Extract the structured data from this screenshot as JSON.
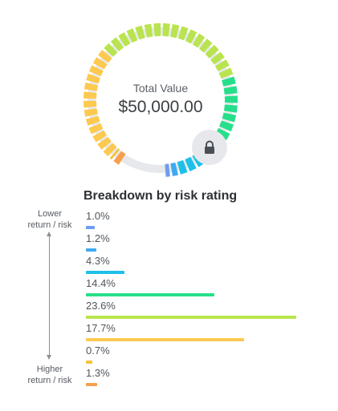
{
  "portfolio": {
    "total_label": "Total Value",
    "total_value": "$50,000.00"
  },
  "breakdown": {
    "title": "Breakdown by risk rating",
    "axis_top": [
      "Lower",
      "return / risk"
    ],
    "axis_bottom": [
      "Higher",
      "return / risk"
    ],
    "rows": [
      {
        "pct_label": "1.0%",
        "value": 1.0,
        "color": "#6f9cf2"
      },
      {
        "pct_label": "1.2%",
        "value": 1.2,
        "color": "#3eaaf0"
      },
      {
        "pct_label": "4.3%",
        "value": 4.3,
        "color": "#1ec0e8"
      },
      {
        "pct_label": "14.4%",
        "value": 14.4,
        "color": "#27df8a"
      },
      {
        "pct_label": "23.6%",
        "value": 23.6,
        "color": "#b9e44f"
      },
      {
        "pct_label": "17.7%",
        "value": 17.7,
        "color": "#fdc94f"
      },
      {
        "pct_label": "0.7%",
        "value": 0.7,
        "color": "#f5c436"
      },
      {
        "pct_label": "1.3%",
        "value": 1.3,
        "color": "#f6a04e"
      }
    ]
  },
  "donut": {
    "track_color": "#e6e8eb",
    "segments": [
      {
        "color": "#6f9cf2",
        "value": 1.0
      },
      {
        "color": "#3eaaf0",
        "value": 1.2
      },
      {
        "color": "#1ec0e8",
        "value": 4.3
      },
      {
        "color": "#27df8a",
        "value": 14.4
      },
      {
        "color": "#b9e44f",
        "value": 23.6
      },
      {
        "color": "#fdc94f",
        "value": 17.7
      },
      {
        "color": "#f5c436",
        "value": 0.7
      },
      {
        "color": "#f6a04e",
        "value": 1.3
      }
    ]
  },
  "icons": {
    "lock": "lock-icon"
  }
}
